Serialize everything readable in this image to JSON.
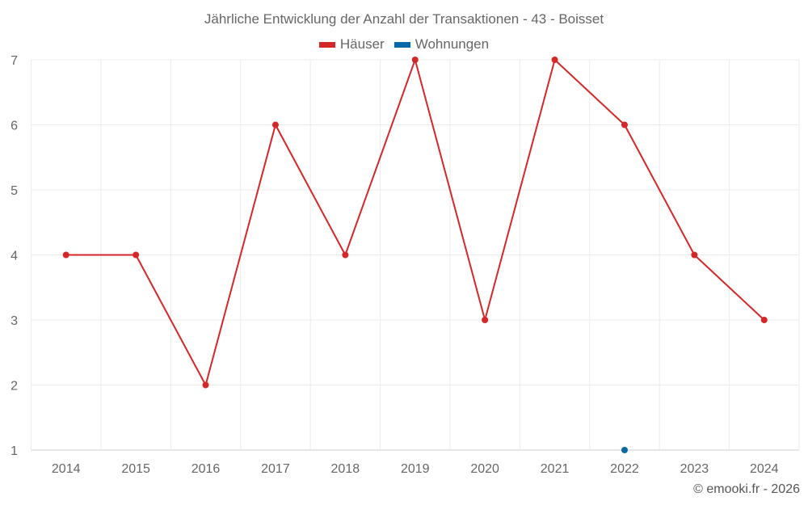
{
  "chart_data": {
    "type": "line",
    "title": "Jährliche Entwicklung der Anzahl der Transaktionen - 43 - Boisset",
    "categories": [
      "2014",
      "2015",
      "2016",
      "2017",
      "2018",
      "2019",
      "2020",
      "2021",
      "2022",
      "2023",
      "2024"
    ],
    "yticks": [
      "1",
      "2",
      "3",
      "4",
      "5",
      "6",
      "7"
    ],
    "ylim": [
      1,
      7
    ],
    "grid": true,
    "legend_position": "top-center",
    "series": [
      {
        "name": "Häuser",
        "color": "#d62728",
        "values": [
          4,
          4,
          2,
          6,
          4,
          7,
          3,
          7,
          6,
          4,
          3
        ]
      },
      {
        "name": "Wohnungen",
        "color": "#0868a8",
        "values": [
          null,
          null,
          null,
          null,
          null,
          null,
          null,
          null,
          1,
          null,
          null
        ]
      }
    ]
  },
  "credit": "© emooki.fr - 2026"
}
